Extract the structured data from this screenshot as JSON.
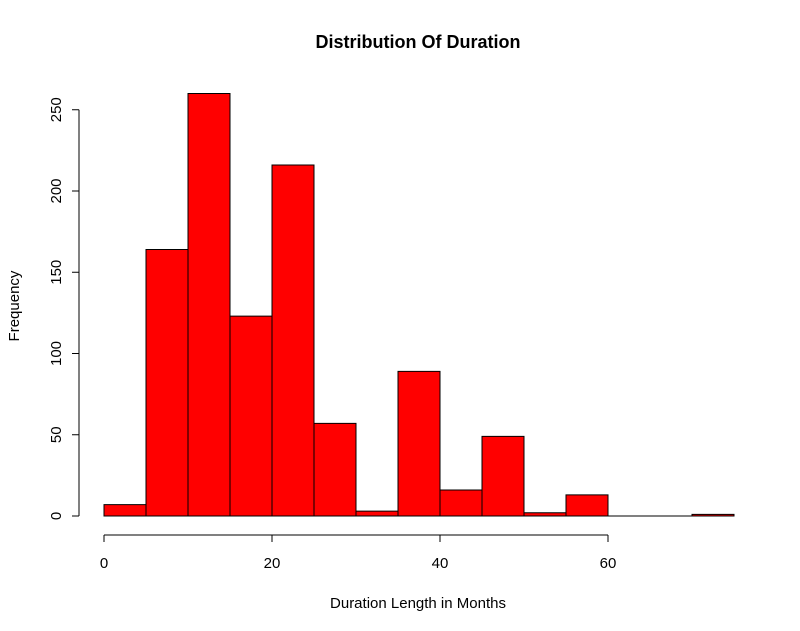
{
  "chart_data": {
    "type": "bar",
    "title": "Distribution Of Duration",
    "xlabel": "Duration Length in Months",
    "ylabel": "Frequency",
    "bins": [
      {
        "from": 0,
        "to": 5,
        "count": 7
      },
      {
        "from": 5,
        "to": 10,
        "count": 164
      },
      {
        "from": 10,
        "to": 15,
        "count": 260
      },
      {
        "from": 15,
        "to": 20,
        "count": 123
      },
      {
        "from": 20,
        "to": 25,
        "count": 216
      },
      {
        "from": 25,
        "to": 30,
        "count": 57
      },
      {
        "from": 30,
        "to": 35,
        "count": 3
      },
      {
        "from": 35,
        "to": 40,
        "count": 89
      },
      {
        "from": 40,
        "to": 45,
        "count": 16
      },
      {
        "from": 45,
        "to": 50,
        "count": 49
      },
      {
        "from": 50,
        "to": 55,
        "count": 2
      },
      {
        "from": 55,
        "to": 60,
        "count": 13
      },
      {
        "from": 60,
        "to": 65,
        "count": 0
      },
      {
        "from": 65,
        "to": 70,
        "count": 0
      },
      {
        "from": 70,
        "to": 75,
        "count": 1
      }
    ],
    "xlim": [
      0,
      75
    ],
    "ylim": [
      0,
      260
    ],
    "x_ticks": [
      0,
      20,
      40,
      60
    ],
    "y_ticks": [
      0,
      50,
      100,
      150,
      200,
      250
    ],
    "bar_color": "#ff0000",
    "bar_border_color": "#000000",
    "grid": false
  }
}
